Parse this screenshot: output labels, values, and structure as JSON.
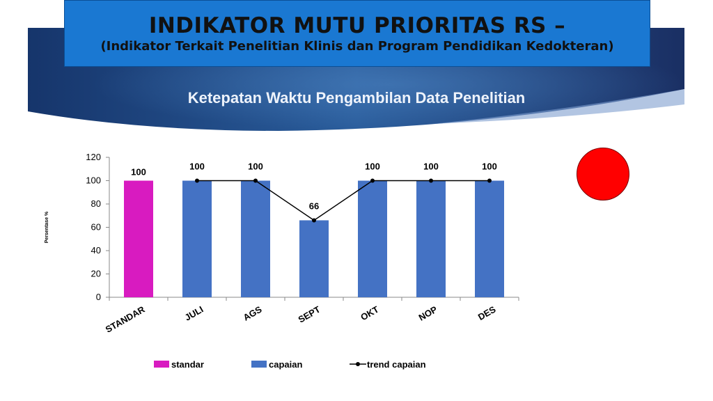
{
  "header": {
    "title": "INDIKATOR  MUTU PRIORITAS RS –",
    "subtitle": "(Indikator Terkait Penelitian Klinis dan Program Pendidikan Kedokteran)"
  },
  "slide": {
    "heading": "Ketepatan Waktu Pengambilan Data Penelitian"
  },
  "status": {
    "color": "#ff0000"
  },
  "chart_data": {
    "type": "bar",
    "title": "",
    "xlabel": "",
    "ylabel": "Persentase %",
    "ylim": [
      0,
      120
    ],
    "yticks": [
      0,
      20,
      40,
      60,
      80,
      100,
      120
    ],
    "categories": [
      "STANDAR",
      "JULI",
      "AGS",
      "SEPT",
      "OKT",
      "NOP",
      "DES"
    ],
    "series": [
      {
        "name": "standar",
        "kind": "bar",
        "color": "#d81bc0",
        "values": [
          100,
          null,
          null,
          null,
          null,
          null,
          null
        ]
      },
      {
        "name": "capaian",
        "kind": "bar",
        "color": "#4472c4",
        "values": [
          null,
          100,
          100,
          66,
          100,
          100,
          100
        ]
      },
      {
        "name": "trend capaian",
        "kind": "line",
        "color": "#000000",
        "values": [
          null,
          100,
          100,
          66,
          100,
          100,
          100
        ]
      }
    ],
    "data_labels": [
      "100",
      "100",
      "100",
      "66",
      "100",
      "100",
      "100"
    ],
    "legend": [
      "standar",
      "capaian",
      "trend capaian"
    ],
    "legend_position": "bottom",
    "grid": false
  }
}
